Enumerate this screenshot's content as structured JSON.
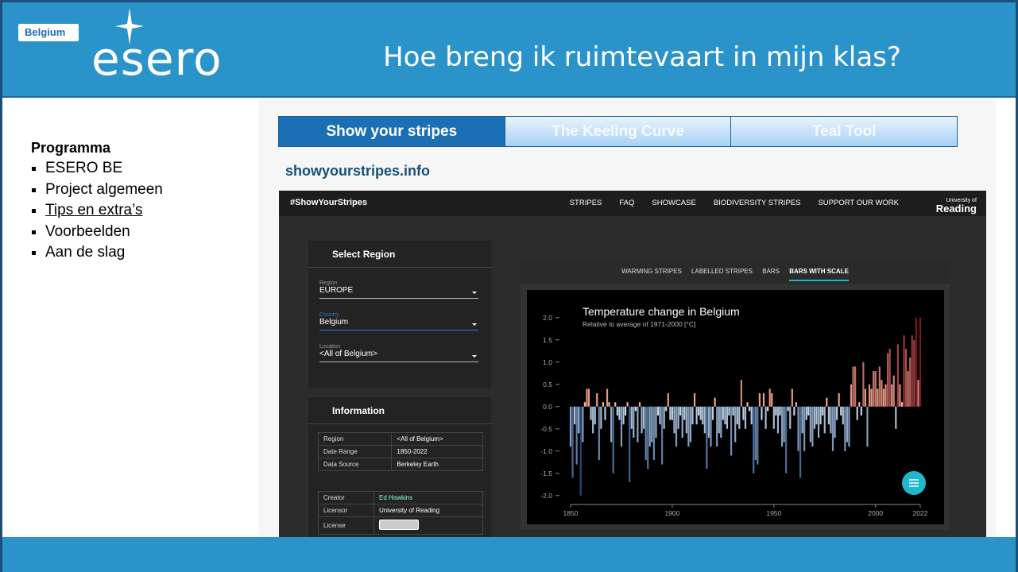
{
  "header": {
    "badge": "Belgium",
    "logo": "esero",
    "title": "Hoe breng ik ruimtevaart in mijn klas?"
  },
  "sidebar": {
    "heading": "Programma",
    "items": [
      "ESERO BE",
      "Project algemeen",
      "Tips en extra’s",
      "Voorbeelden",
      "Aan de slag"
    ]
  },
  "tabs": [
    "Show your stripes",
    "The Keeling Curve",
    "Teal Tool"
  ],
  "url": "showyourstripes.info",
  "site": {
    "brand": "#ShowYourStripes",
    "nav": [
      "STRIPES",
      "FAQ",
      "SHOWCASE",
      "BIODIVERSITY STRIPES",
      "SUPPORT OUR WORK"
    ],
    "university": [
      "University of",
      "Reading"
    ],
    "select": {
      "title": "Select Region",
      "fields": [
        {
          "label": "Region",
          "value": "EUROPE"
        },
        {
          "label": "Country",
          "value": "Belgium"
        },
        {
          "label": "Location",
          "value": "<All of Belgium>"
        }
      ]
    },
    "info": {
      "title": "Information",
      "rows": [
        [
          "Region",
          "<All of Belgium>"
        ],
        [
          "Date Range",
          "1850-2022"
        ],
        [
          "Data Source",
          "Berkeley Earth"
        ]
      ],
      "rows2": [
        [
          "Creator",
          "Ed Hawkins"
        ],
        [
          "Licensor",
          "University of Reading"
        ],
        [
          "License"
        ]
      ]
    },
    "chart_tabs": [
      "WARMING STRIPES",
      "LABELLED STRIPES",
      "BARS",
      "BARS WITH SCALE"
    ]
  },
  "chart_data": {
    "type": "bar",
    "title": "Temperature change in Belgium",
    "subtitle": "Relative to average of 1971-2000 [°C]",
    "x": [
      1850,
      1851,
      1852,
      1853,
      1854,
      1855,
      1856,
      1857,
      1858,
      1859,
      1860,
      1861,
      1862,
      1863,
      1864,
      1865,
      1866,
      1867,
      1868,
      1869,
      1870,
      1871,
      1872,
      1873,
      1874,
      1875,
      1876,
      1877,
      1878,
      1879,
      1880,
      1881,
      1882,
      1883,
      1884,
      1885,
      1886,
      1887,
      1888,
      1889,
      1890,
      1891,
      1892,
      1893,
      1894,
      1895,
      1896,
      1897,
      1898,
      1899,
      1900,
      1901,
      1902,
      1903,
      1904,
      1905,
      1906,
      1907,
      1908,
      1909,
      1910,
      1911,
      1912,
      1913,
      1914,
      1915,
      1916,
      1917,
      1918,
      1919,
      1920,
      1921,
      1922,
      1923,
      1924,
      1925,
      1926,
      1927,
      1928,
      1929,
      1930,
      1931,
      1932,
      1933,
      1934,
      1935,
      1936,
      1937,
      1938,
      1939,
      1940,
      1941,
      1942,
      1943,
      1944,
      1945,
      1946,
      1947,
      1948,
      1949,
      1950,
      1951,
      1952,
      1953,
      1954,
      1955,
      1956,
      1957,
      1958,
      1959,
      1960,
      1961,
      1962,
      1963,
      1964,
      1965,
      1966,
      1967,
      1968,
      1969,
      1970,
      1971,
      1972,
      1973,
      1974,
      1975,
      1976,
      1977,
      1978,
      1979,
      1980,
      1981,
      1982,
      1983,
      1984,
      1985,
      1986,
      1987,
      1988,
      1989,
      1990,
      1991,
      1992,
      1993,
      1994,
      1995,
      1996,
      1997,
      1998,
      1999,
      2000,
      2001,
      2002,
      2003,
      2004,
      2005,
      2006,
      2007,
      2008,
      2009,
      2010,
      2011,
      2012,
      2013,
      2014,
      2015,
      2016,
      2017,
      2018,
      2019,
      2020,
      2021,
      2022
    ],
    "values": [
      -0.9,
      -1.6,
      -0.4,
      -1.3,
      -0.6,
      -2.0,
      -0.8,
      0.1,
      0.4,
      0.4,
      -0.3,
      -0.6,
      -0.4,
      0.3,
      -1.2,
      -0.5,
      0.1,
      -0.3,
      0.4,
      0.1,
      -0.8,
      -1.5,
      0.1,
      -0.2,
      -0.3,
      -0.9,
      -0.4,
      -0.2,
      0.1,
      -1.7,
      -0.5,
      -0.7,
      -0.1,
      -0.8,
      0.1,
      -0.6,
      -0.5,
      -1.2,
      -1.4,
      -0.9,
      -0.8,
      -1.2,
      -0.7,
      -0.2,
      -0.4,
      -1.3,
      -0.5,
      -0.1,
      0.3,
      -0.3,
      -0.3,
      -0.6,
      -0.9,
      -0.5,
      -0.2,
      -0.7,
      -0.3,
      -0.6,
      -0.9,
      -0.8,
      -0.4,
      0.3,
      -0.4,
      -0.2,
      -0.3,
      -0.4,
      -0.6,
      -1.4,
      -0.7,
      -0.9,
      -0.3,
      0.2,
      -0.9,
      -0.6,
      -0.7,
      -0.3,
      -0.4,
      -0.5,
      -0.2,
      -1.1,
      -0.2,
      -0.8,
      -0.4,
      -0.5,
      0.6,
      -0.3,
      -0.5,
      0.1,
      -0.1,
      -0.4,
      -1.5,
      -1.2,
      -1.3,
      0.3,
      -0.3,
      0.3,
      -0.5,
      -0.1,
      0.4,
      0.3,
      -0.5,
      -0.2,
      -0.6,
      -0.2,
      -0.9,
      -0.8,
      -1.5,
      -0.1,
      -0.5,
      0.4,
      -0.2,
      0.1,
      -1.0,
      -1.6,
      -0.6,
      -1.0,
      -0.3,
      -0.2,
      -0.8,
      -0.9,
      -0.5,
      -0.4,
      -0.7,
      -0.4,
      -0.2,
      -0.6,
      0.2,
      -0.4,
      -0.6,
      -1.0,
      -0.7,
      -0.3,
      0.3,
      -0.2,
      -0.4,
      -1.0,
      -0.8,
      -0.9,
      0.5,
      0.9,
      0.9,
      -0.3,
      0.1,
      -0.2,
      1.0,
      0.4,
      -0.9,
      0.5,
      0.4,
      0.8,
      0.8,
      0.4,
      0.9,
      0.6,
      0.4,
      0.5,
      1.2,
      1.3,
      0.5,
      0.7,
      -0.5,
      1.4,
      0.5,
      0.1,
      1.6,
      1.3,
      0.8,
      1.1,
      1.6,
      1.5,
      2.0,
      0.6,
      2.0
    ],
    "colormap": {
      "cold": [
        "#d6e6f4",
        "#08306b"
      ],
      "warm": [
        "#fcbba1",
        "#67000d"
      ]
    },
    "xlim": [
      1850,
      2022
    ],
    "xticks": [
      1850,
      1900,
      1950,
      2000,
      2022
    ],
    "ylim": [
      -2.2,
      2.3
    ],
    "yticks": [
      {
        "value": 2,
        "label": "2.0"
      },
      {
        "value": 1.5,
        "label": "1.5"
      },
      {
        "value": 1,
        "label": "1.0"
      },
      {
        "value": 0.5,
        "label": "0.5"
      },
      {
        "value": 0,
        "label": "0.0"
      },
      {
        "value": -0.5,
        "label": "-0.5"
      },
      {
        "value": -1,
        "label": "-1.0"
      },
      {
        "value": -1.5,
        "label": "-1.5"
      },
      {
        "value": -2,
        "label": "-2.0"
      }
    ]
  }
}
